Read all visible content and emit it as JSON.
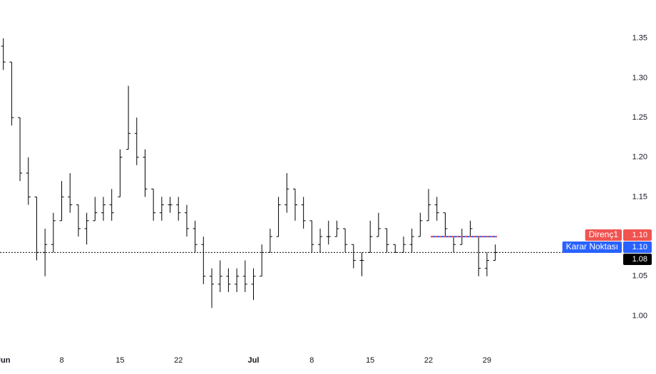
{
  "chart_data": {
    "type": "ohlc",
    "x": [
      0,
      1,
      2,
      3,
      4,
      5,
      6,
      7,
      8,
      9,
      10,
      11,
      12,
      13,
      14,
      15,
      16,
      17,
      18,
      19,
      20,
      21,
      22,
      23,
      24,
      25,
      26,
      27,
      28,
      29,
      30,
      31,
      32,
      33,
      34,
      35,
      36,
      37,
      38,
      39,
      40,
      41,
      42,
      43,
      44,
      45,
      46,
      47,
      48,
      49,
      50,
      51,
      52,
      53,
      54,
      55,
      56,
      57,
      58,
      59
    ],
    "open": [
      1.34,
      1.32,
      1.25,
      1.18,
      1.15,
      1.08,
      1.09,
      1.12,
      1.15,
      1.14,
      1.11,
      1.12,
      1.13,
      1.14,
      1.15,
      1.21,
      1.23,
      1.2,
      1.16,
      1.13,
      1.14,
      1.14,
      1.13,
      1.11,
      1.09,
      1.05,
      1.04,
      1.05,
      1.04,
      1.05,
      1.04,
      1.05,
      1.08,
      1.1,
      1.14,
      1.16,
      1.14,
      1.12,
      1.09,
      1.1,
      1.1,
      1.11,
      1.09,
      1.07,
      1.08,
      1.1,
      1.11,
      1.09,
      1.08,
      1.09,
      1.1,
      1.12,
      1.14,
      1.13,
      1.1,
      1.09,
      1.1,
      1.1,
      1.06,
      1.07
    ],
    "high": [
      1.35,
      1.32,
      1.25,
      1.2,
      1.15,
      1.11,
      1.13,
      1.17,
      1.18,
      1.14,
      1.13,
      1.15,
      1.15,
      1.16,
      1.21,
      1.29,
      1.25,
      1.21,
      1.16,
      1.15,
      1.15,
      1.15,
      1.14,
      1.12,
      1.1,
      1.06,
      1.07,
      1.06,
      1.06,
      1.07,
      1.06,
      1.09,
      1.11,
      1.15,
      1.18,
      1.16,
      1.15,
      1.12,
      1.11,
      1.12,
      1.12,
      1.11,
      1.09,
      1.08,
      1.12,
      1.13,
      1.11,
      1.09,
      1.1,
      1.11,
      1.13,
      1.16,
      1.15,
      1.13,
      1.1,
      1.11,
      1.12,
      1.1,
      1.08,
      1.09
    ],
    "low": [
      1.31,
      1.24,
      1.17,
      1.14,
      1.07,
      1.05,
      1.08,
      1.12,
      1.13,
      1.1,
      1.09,
      1.12,
      1.12,
      1.12,
      1.15,
      1.21,
      1.19,
      1.15,
      1.12,
      1.12,
      1.13,
      1.12,
      1.1,
      1.08,
      1.04,
      1.01,
      1.03,
      1.03,
      1.03,
      1.03,
      1.02,
      1.05,
      1.08,
      1.1,
      1.13,
      1.12,
      1.11,
      1.08,
      1.08,
      1.09,
      1.1,
      1.08,
      1.06,
      1.05,
      1.08,
      1.1,
      1.08,
      1.08,
      1.08,
      1.08,
      1.1,
      1.12,
      1.12,
      1.1,
      1.08,
      1.09,
      1.1,
      1.05,
      1.05,
      1.07
    ],
    "close": [
      1.32,
      1.25,
      1.18,
      1.15,
      1.08,
      1.09,
      1.12,
      1.15,
      1.14,
      1.11,
      1.12,
      1.13,
      1.14,
      1.13,
      1.2,
      1.23,
      1.2,
      1.16,
      1.13,
      1.14,
      1.14,
      1.13,
      1.11,
      1.09,
      1.05,
      1.04,
      1.05,
      1.04,
      1.05,
      1.04,
      1.05,
      1.08,
      1.1,
      1.14,
      1.16,
      1.14,
      1.12,
      1.09,
      1.1,
      1.1,
      1.11,
      1.09,
      1.07,
      1.07,
      1.1,
      1.11,
      1.09,
      1.08,
      1.09,
      1.1,
      1.12,
      1.14,
      1.13,
      1.11,
      1.09,
      1.1,
      1.11,
      1.06,
      1.07,
      1.08
    ],
    "color": "#000000",
    "xlim": [
      -0.4,
      74
    ],
    "xticks": [
      {
        "value": 0,
        "label": "Jun"
      },
      {
        "value": 7,
        "label": "8"
      },
      {
        "value": 14,
        "label": "15"
      },
      {
        "value": 21,
        "label": "22"
      },
      {
        "value": 30,
        "label": "Jul"
      },
      {
        "value": 37,
        "label": "8"
      },
      {
        "value": 44,
        "label": "15"
      },
      {
        "value": 51,
        "label": "22"
      },
      {
        "value": 58,
        "label": "29"
      }
    ],
    "ylim": [
      0.96,
      1.4
    ],
    "yticks": [
      {
        "value": 1.0,
        "label": "1.00"
      },
      1.05,
      {
        "value": 1.1,
        "label": "1.10"
      },
      1.15,
      {
        "value": 1.2,
        "label": "1.20"
      },
      1.25,
      {
        "value": 1.3,
        "label": "1.30"
      },
      1.35
    ],
    "levels": [
      {
        "name": "Direnç1",
        "value": 1.1,
        "label": "1.10",
        "color": "#f05350"
      },
      {
        "name": "Karar Noktası",
        "value": 1.1,
        "label": "1.10",
        "color": "#2962ff"
      }
    ],
    "last_price": 1.08
  }
}
